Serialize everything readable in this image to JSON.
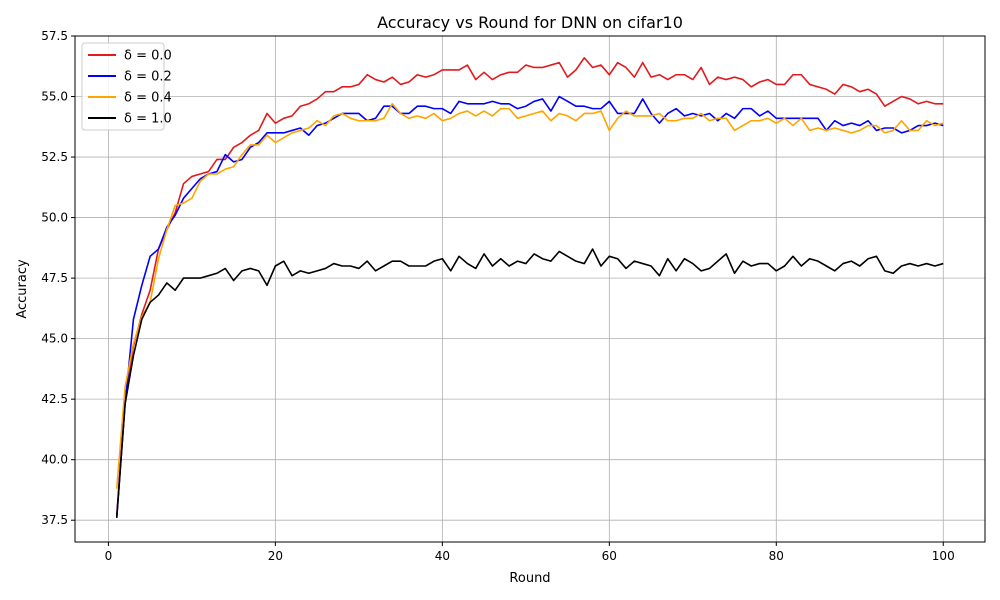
{
  "chart_data": {
    "type": "line",
    "title": "Accuracy vs Round for DNN on cifar10",
    "xlabel": "Round",
    "ylabel": "Accuracy",
    "xlim": [
      -4,
      105
    ],
    "ylim": [
      36.6,
      57.5
    ],
    "xticks": [
      0,
      20,
      40,
      60,
      80,
      100
    ],
    "yticks": [
      37.5,
      40.0,
      42.5,
      45.0,
      47.5,
      50.0,
      52.5,
      55.0,
      57.5
    ],
    "xtick_labels": [
      "0",
      "20",
      "40",
      "60",
      "80",
      "100"
    ],
    "ytick_labels": [
      "37.5",
      "40.0",
      "42.5",
      "45.0",
      "47.5",
      "50.0",
      "52.5",
      "55.0",
      "57.5"
    ],
    "grid": true,
    "legend_position": "top-left",
    "x": [
      1,
      2,
      3,
      4,
      5,
      6,
      7,
      8,
      9,
      10,
      11,
      12,
      13,
      14,
      15,
      16,
      17,
      18,
      19,
      20,
      21,
      22,
      23,
      24,
      25,
      26,
      27,
      28,
      29,
      30,
      31,
      32,
      33,
      34,
      35,
      36,
      37,
      38,
      39,
      40,
      41,
      42,
      43,
      44,
      45,
      46,
      47,
      48,
      49,
      50,
      51,
      52,
      53,
      54,
      55,
      56,
      57,
      58,
      59,
      60,
      61,
      62,
      63,
      64,
      65,
      66,
      67,
      68,
      69,
      70,
      71,
      72,
      73,
      74,
      75,
      76,
      77,
      78,
      79,
      80,
      81,
      82,
      83,
      84,
      85,
      86,
      87,
      88,
      89,
      90,
      91,
      92,
      93,
      94,
      95,
      96,
      97,
      98,
      99,
      100
    ],
    "series": [
      {
        "name": "δ = 0.0",
        "color": "#e31a1c",
        "values": [
          37.7,
          42.5,
          44.7,
          46.0,
          47.0,
          48.7,
          49.5,
          50.2,
          51.4,
          51.7,
          51.8,
          51.9,
          52.4,
          52.4,
          52.9,
          53.1,
          53.4,
          53.6,
          54.3,
          53.9,
          54.1,
          54.2,
          54.6,
          54.7,
          54.9,
          55.2,
          55.2,
          55.4,
          55.4,
          55.5,
          55.9,
          55.7,
          55.6,
          55.8,
          55.5,
          55.6,
          55.9,
          55.8,
          55.9,
          56.1,
          56.1,
          56.1,
          56.3,
          55.7,
          56.0,
          55.7,
          55.9,
          56.0,
          56.0,
          56.3,
          56.2,
          56.2,
          56.3,
          56.4,
          55.8,
          56.1,
          56.6,
          56.2,
          56.3,
          55.9,
          56.4,
          56.2,
          55.8,
          56.4,
          55.8,
          55.9,
          55.7,
          55.9,
          55.9,
          55.7,
          56.2,
          55.5,
          55.8,
          55.7,
          55.8,
          55.7,
          55.4,
          55.6,
          55.7,
          55.5,
          55.5,
          55.9,
          55.9,
          55.5,
          55.4,
          55.3,
          55.1,
          55.5,
          55.4,
          55.2,
          55.3,
          55.1,
          54.6,
          54.8,
          55.0,
          54.9,
          54.7,
          54.8,
          54.7,
          54.7
        ]
      },
      {
        "name": "δ = 0.2",
        "color": "#0000ff",
        "values": [
          37.6,
          42.3,
          45.8,
          47.2,
          48.4,
          48.7,
          49.6,
          50.1,
          50.8,
          51.2,
          51.6,
          51.8,
          51.9,
          52.6,
          52.3,
          52.4,
          52.9,
          53.1,
          53.5,
          53.5,
          53.5,
          53.6,
          53.7,
          53.4,
          53.8,
          53.9,
          54.1,
          54.3,
          54.3,
          54.3,
          54.0,
          54.1,
          54.6,
          54.6,
          54.3,
          54.3,
          54.6,
          54.6,
          54.5,
          54.5,
          54.3,
          54.8,
          54.7,
          54.7,
          54.7,
          54.8,
          54.7,
          54.7,
          54.5,
          54.6,
          54.8,
          54.9,
          54.4,
          55.0,
          54.8,
          54.6,
          54.6,
          54.5,
          54.5,
          54.8,
          54.3,
          54.3,
          54.3,
          54.9,
          54.3,
          53.9,
          54.3,
          54.5,
          54.2,
          54.3,
          54.2,
          54.3,
          54.0,
          54.3,
          54.1,
          54.5,
          54.5,
          54.2,
          54.4,
          54.1,
          54.1,
          54.1,
          54.1,
          54.1,
          54.1,
          53.6,
          54.0,
          53.8,
          53.9,
          53.8,
          54.0,
          53.6,
          53.7,
          53.7,
          53.5,
          53.6,
          53.8,
          53.8,
          53.9,
          53.8
        ]
      },
      {
        "name": "δ = 0.4",
        "color": "#ffa500",
        "values": [
          38.8,
          43.0,
          44.8,
          45.9,
          46.5,
          48.3,
          49.5,
          50.5,
          50.6,
          50.8,
          51.5,
          51.8,
          51.8,
          52.0,
          52.1,
          52.6,
          53.0,
          53.0,
          53.4,
          53.1,
          53.3,
          53.5,
          53.6,
          53.7,
          54.0,
          53.8,
          54.2,
          54.3,
          54.1,
          54.0,
          54.0,
          54.0,
          54.1,
          54.7,
          54.3,
          54.1,
          54.2,
          54.1,
          54.3,
          54.0,
          54.1,
          54.3,
          54.4,
          54.2,
          54.4,
          54.2,
          54.5,
          54.5,
          54.1,
          54.2,
          54.3,
          54.4,
          54.0,
          54.3,
          54.2,
          54.0,
          54.3,
          54.3,
          54.4,
          53.6,
          54.1,
          54.4,
          54.2,
          54.2,
          54.2,
          54.3,
          54.0,
          54.0,
          54.1,
          54.1,
          54.3,
          54.0,
          54.1,
          54.1,
          53.6,
          53.8,
          54.0,
          54.0,
          54.1,
          53.9,
          54.1,
          53.8,
          54.1,
          53.6,
          53.7,
          53.6,
          53.7,
          53.6,
          53.5,
          53.6,
          53.8,
          53.8,
          53.5,
          53.6,
          54.0,
          53.6,
          53.6,
          54.0,
          53.8,
          53.9
        ]
      },
      {
        "name": "δ = 1.0",
        "color": "#000000",
        "values": [
          37.6,
          42.3,
          44.3,
          45.8,
          46.5,
          46.8,
          47.3,
          47.0,
          47.5,
          47.5,
          47.5,
          47.6,
          47.7,
          47.9,
          47.4,
          47.8,
          47.9,
          47.8,
          47.2,
          48.0,
          48.2,
          47.6,
          47.8,
          47.7,
          47.8,
          47.9,
          48.1,
          48.0,
          48.0,
          47.9,
          48.2,
          47.8,
          48.0,
          48.2,
          48.2,
          48.0,
          48.0,
          48.0,
          48.2,
          48.3,
          47.8,
          48.4,
          48.1,
          47.9,
          48.5,
          48.0,
          48.3,
          48.0,
          48.2,
          48.1,
          48.5,
          48.3,
          48.2,
          48.6,
          48.4,
          48.2,
          48.1,
          48.7,
          48.0,
          48.4,
          48.3,
          47.9,
          48.2,
          48.1,
          48.0,
          47.6,
          48.3,
          47.8,
          48.3,
          48.1,
          47.8,
          47.9,
          48.2,
          48.5,
          47.7,
          48.2,
          48.0,
          48.1,
          48.1,
          47.8,
          48.0,
          48.4,
          48.0,
          48.3,
          48.2,
          48.0,
          47.8,
          48.1,
          48.2,
          48.0,
          48.3,
          48.4,
          47.8,
          47.7,
          48.0,
          48.1,
          48.0,
          48.1,
          48.0,
          48.1
        ]
      }
    ]
  }
}
